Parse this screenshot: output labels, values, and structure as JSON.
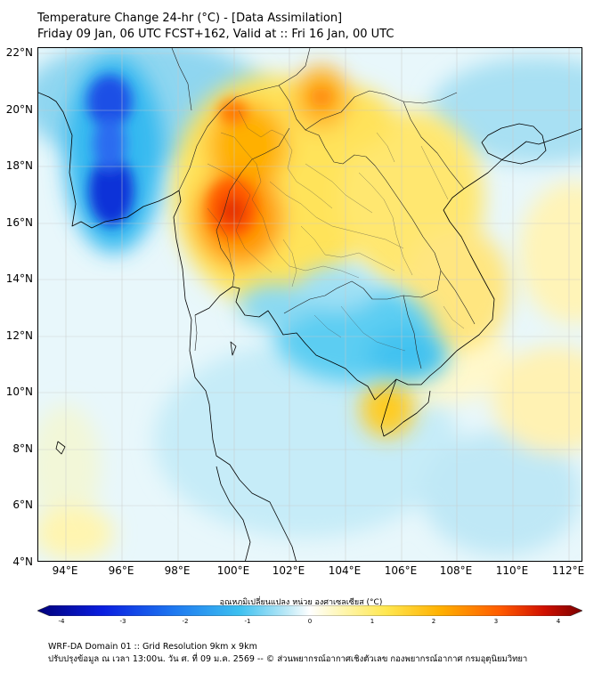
{
  "title": {
    "line1": "Temperature Change 24-hr (°C) - [Data Assimilation]",
    "line2": "Friday 09 Jan, 06 UTC FCST+162, Valid at :: Fri 16 Jan, 00 UTC"
  },
  "map": {
    "lat_labels": [
      "22°N",
      "20°N",
      "18°N",
      "16°N",
      "14°N",
      "12°N",
      "10°N",
      "8°N",
      "6°N",
      "4°N"
    ],
    "lon_labels": [
      "94°E",
      "96°E",
      "98°E",
      "100°E",
      "102°E",
      "104°E",
      "106°E",
      "108°E",
      "110°E",
      "112°E"
    ],
    "extent": {
      "lon_min": 93.0,
      "lon_max": 112.5,
      "lat_min": 4.0,
      "lat_max": 22.1
    },
    "gridlines": true,
    "warm_anomalies": [
      {
        "region": "northern Thailand",
        "lat": 16.5,
        "lon": 99.6,
        "max_change": 3.0
      },
      {
        "region": "northern Laos",
        "lat": 20.5,
        "lon": 103.1,
        "max_change": 2.5
      },
      {
        "region": "southern Vietnam delta",
        "lat": 9.9,
        "lon": 105.5,
        "max_change": 2.0
      }
    ],
    "cold_anomalies": [
      {
        "region": "Bay of Bengal / Myanmar coast",
        "lat": 17.0,
        "lon": 95.4,
        "min_change": -4.0
      },
      {
        "region": "Gulf of Thailand / Cambodia",
        "lat": 12.5,
        "lon": 104.5,
        "min_change": -1.5
      }
    ]
  },
  "colorbar": {
    "label": "อุณหภูมิเปลี่ยนแปลง หน่วย องศาเซลเซียส (°C)",
    "min": -4,
    "max": 4,
    "ticks": [
      "-4",
      "-3",
      "-2",
      "-1",
      "0",
      "1",
      "2",
      "3",
      "4"
    ],
    "colors": {
      "very_cold": "#00008b",
      "cold": "#1e90ff",
      "cool": "#87ceeb",
      "neutral": "#ffffff",
      "warm": "#ffd700",
      "hot": "#ff4500",
      "very_hot": "#8b0000"
    }
  },
  "footer": {
    "line1": "WRF-DA Domain 01 :: Grid Resolution 9km x 9km",
    "line2": "ปรับปรุงข้อมูล ณ เวลา 13:00น. วัน ศ. ที่ 09 ม.ค. 2569 -- © ส่วนพยากรณ์อากาศเชิงตัวเลข กองพยากรณ์อากาศ กรมอุตุนิยมวิทยา"
  }
}
